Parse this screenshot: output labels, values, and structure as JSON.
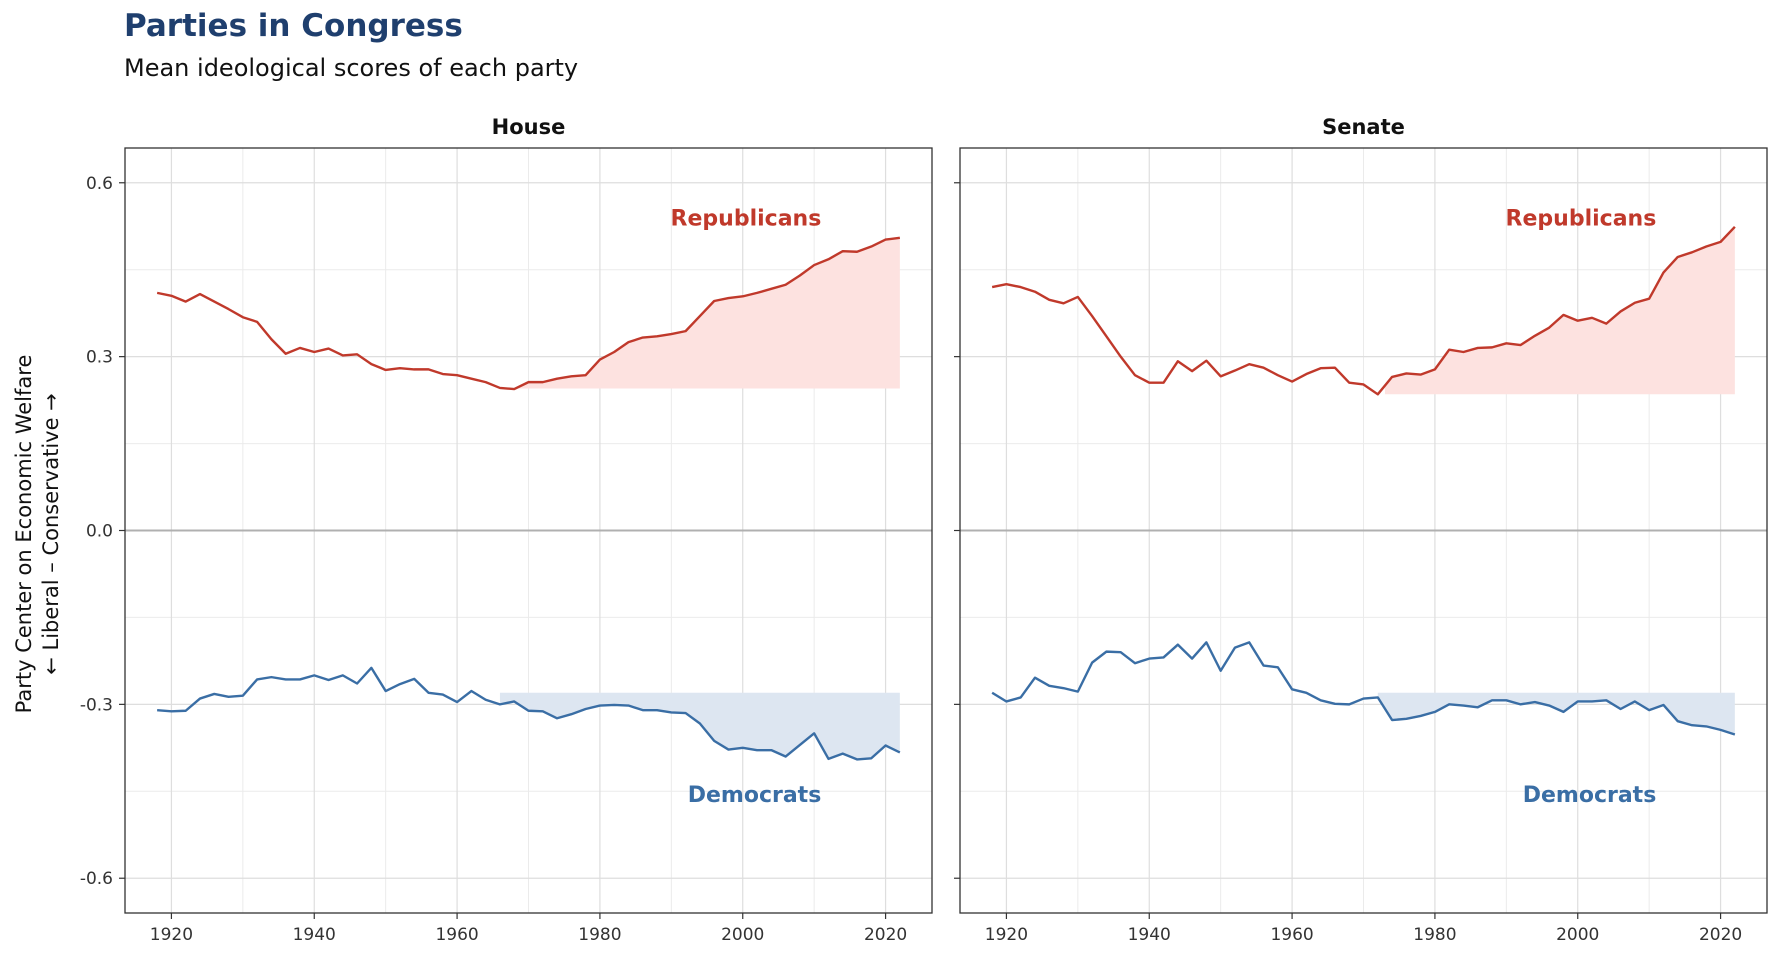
{
  "chart_data": {
    "type": "line",
    "title": "Parties in Congress",
    "subtitle": "Mean ideological scores of each party",
    "ylabel_line1": "Party Center on Economic Welfare",
    "ylabel_line2": "← Liberal – Conservative →",
    "ylim": [
      -0.66,
      0.66
    ],
    "xlim": [
      1913.5,
      2026.5
    ],
    "yticks": [
      0.6,
      0.3,
      0.0,
      -0.3,
      -0.6
    ],
    "ytick_labels": [
      "0.6",
      "0.3",
      "0.0",
      "-0.3",
      "-0.6"
    ],
    "xticks": [
      1920,
      1940,
      1960,
      1980,
      2000,
      2020
    ],
    "xtick_labels": [
      "1920",
      "1940",
      "1960",
      "1980",
      "2000",
      "2020"
    ],
    "grid": true,
    "colors": {
      "republicans": "#c0392b",
      "democrats": "#3a6ea5",
      "rep_fill": "#fde2e0",
      "dem_fill": "#dde6f1",
      "zero_line": "#b0b0b0"
    },
    "facets": [
      {
        "name": "House",
        "series": [
          {
            "name": "Republicans",
            "label": "Republicans",
            "fill_baseline": 0.245,
            "fill_from_year": 1967,
            "x": [
              1918,
              1920,
              1922,
              1924,
              1926,
              1928,
              1930,
              1932,
              1934,
              1936,
              1938,
              1940,
              1942,
              1944,
              1946,
              1948,
              1950,
              1952,
              1954,
              1956,
              1958,
              1960,
              1962,
              1964,
              1966,
              1968,
              1970,
              1972,
              1974,
              1976,
              1978,
              1980,
              1982,
              1984,
              1986,
              1988,
              1990,
              1992,
              1994,
              1996,
              1998,
              2000,
              2002,
              2004,
              2006,
              2008,
              2010,
              2012,
              2014,
              2016,
              2018,
              2020,
              2022
            ],
            "y": [
              0.41,
              0.405,
              0.395,
              0.408,
              0.395,
              0.382,
              0.368,
              0.36,
              0.33,
              0.305,
              0.315,
              0.308,
              0.314,
              0.302,
              0.304,
              0.287,
              0.277,
              0.28,
              0.278,
              0.278,
              0.27,
              0.268,
              0.262,
              0.256,
              0.246,
              0.244,
              0.256,
              0.256,
              0.262,
              0.266,
              0.268,
              0.295,
              0.308,
              0.325,
              0.333,
              0.335,
              0.339,
              0.344,
              0.37,
              0.396,
              0.401,
              0.404,
              0.41,
              0.417,
              0.424,
              0.44,
              0.458,
              0.468,
              0.482,
              0.481,
              0.49,
              0.502,
              0.505
            ]
          },
          {
            "name": "Democrats",
            "label": "Democrats",
            "fill_baseline": -0.28,
            "fill_from_year": 1966,
            "x": [
              1918,
              1920,
              1922,
              1924,
              1926,
              1928,
              1930,
              1932,
              1934,
              1936,
              1938,
              1940,
              1942,
              1944,
              1946,
              1948,
              1950,
              1952,
              1954,
              1956,
              1958,
              1960,
              1962,
              1964,
              1966,
              1968,
              1970,
              1972,
              1974,
              1976,
              1978,
              1980,
              1982,
              1984,
              1986,
              1988,
              1990,
              1992,
              1994,
              1996,
              1998,
              2000,
              2002,
              2004,
              2006,
              2008,
              2010,
              2012,
              2014,
              2016,
              2018,
              2020,
              2022
            ],
            "y": [
              -0.31,
              -0.312,
              -0.311,
              -0.29,
              -0.282,
              -0.287,
              -0.285,
              -0.257,
              -0.253,
              -0.257,
              -0.257,
              -0.25,
              -0.258,
              -0.25,
              -0.264,
              -0.237,
              -0.277,
              -0.265,
              -0.256,
              -0.28,
              -0.283,
              -0.296,
              -0.277,
              -0.292,
              -0.3,
              -0.295,
              -0.311,
              -0.312,
              -0.324,
              -0.317,
              -0.308,
              -0.302,
              -0.301,
              -0.302,
              -0.31,
              -0.31,
              -0.314,
              -0.315,
              -0.333,
              -0.363,
              -0.378,
              -0.375,
              -0.379,
              -0.379,
              -0.39,
              -0.37,
              -0.35,
              -0.394,
              -0.385,
              -0.395,
              -0.393,
              -0.371,
              -0.383
            ]
          }
        ]
      },
      {
        "name": "Senate",
        "series": [
          {
            "name": "Republicans",
            "label": "Republicans",
            "fill_baseline": 0.235,
            "fill_from_year": 1973,
            "x": [
              1918,
              1920,
              1922,
              1924,
              1926,
              1928,
              1930,
              1932,
              1934,
              1936,
              1938,
              1940,
              1942,
              1944,
              1946,
              1948,
              1950,
              1952,
              1954,
              1956,
              1958,
              1960,
              1962,
              1964,
              1966,
              1968,
              1970,
              1972,
              1974,
              1976,
              1978,
              1980,
              1982,
              1984,
              1986,
              1988,
              1990,
              1992,
              1994,
              1996,
              1998,
              2000,
              2002,
              2004,
              2006,
              2008,
              2010,
              2012,
              2014,
              2016,
              2018,
              2020,
              2022
            ],
            "y": [
              0.42,
              0.425,
              0.42,
              0.412,
              0.398,
              0.392,
              0.403,
              0.37,
              0.335,
              0.3,
              0.268,
              0.255,
              0.255,
              0.292,
              0.275,
              0.293,
              0.266,
              0.276,
              0.287,
              0.281,
              0.268,
              0.257,
              0.27,
              0.28,
              0.281,
              0.255,
              0.252,
              0.235,
              0.265,
              0.271,
              0.269,
              0.278,
              0.312,
              0.308,
              0.315,
              0.316,
              0.323,
              0.32,
              0.336,
              0.35,
              0.372,
              0.362,
              0.367,
              0.357,
              0.378,
              0.393,
              0.4,
              0.445,
              0.472,
              0.48,
              0.49,
              0.498,
              0.524
            ]
          },
          {
            "name": "Democrats",
            "label": "Democrats",
            "fill_baseline": -0.28,
            "fill_from_year": 1972,
            "x": [
              1918,
              1920,
              1922,
              1924,
              1926,
              1928,
              1930,
              1932,
              1934,
              1936,
              1938,
              1940,
              1942,
              1944,
              1946,
              1948,
              1950,
              1952,
              1954,
              1956,
              1958,
              1960,
              1962,
              1964,
              1966,
              1968,
              1970,
              1972,
              1974,
              1976,
              1978,
              1980,
              1982,
              1984,
              1986,
              1988,
              1990,
              1992,
              1994,
              1996,
              1998,
              2000,
              2002,
              2004,
              2006,
              2008,
              2010,
              2012,
              2014,
              2016,
              2018,
              2020,
              2022
            ],
            "y": [
              -0.28,
              -0.295,
              -0.288,
              -0.254,
              -0.268,
              -0.272,
              -0.278,
              -0.228,
              -0.209,
              -0.21,
              -0.229,
              -0.221,
              -0.219,
              -0.197,
              -0.221,
              -0.193,
              -0.242,
              -0.202,
              -0.193,
              -0.233,
              -0.236,
              -0.274,
              -0.28,
              -0.293,
              -0.299,
              -0.3,
              -0.29,
              -0.288,
              -0.327,
              -0.325,
              -0.32,
              -0.313,
              -0.3,
              -0.302,
              -0.305,
              -0.293,
              -0.293,
              -0.3,
              -0.296,
              -0.302,
              -0.313,
              -0.295,
              -0.295,
              -0.293,
              -0.308,
              -0.295,
              -0.31,
              -0.301,
              -0.329,
              -0.336,
              -0.338,
              -0.344,
              -0.352
            ]
          }
        ]
      }
    ]
  }
}
